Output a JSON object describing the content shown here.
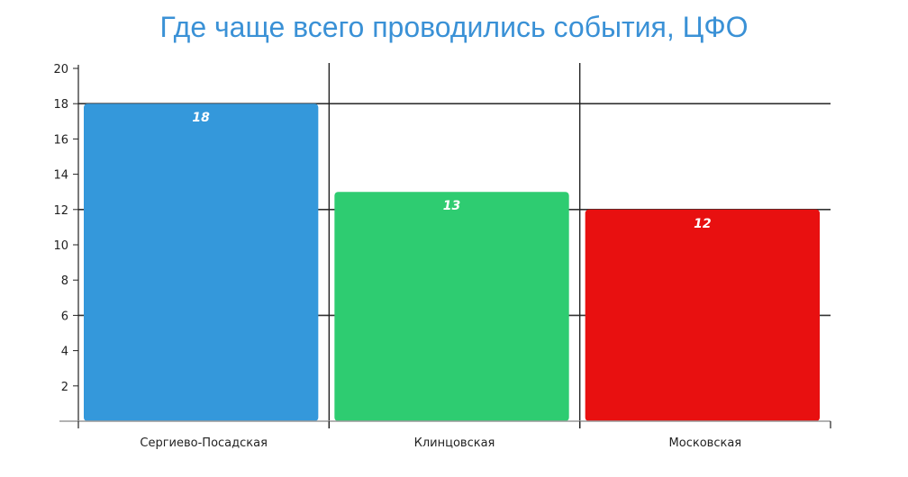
{
  "chart_data": {
    "type": "bar",
    "title": "Где чаще всего проводились события, ЦФО",
    "categories": [
      "Сергиево-Посадская",
      "Клинцовская",
      "Московская"
    ],
    "values": [
      18,
      13,
      12
    ],
    "colors": [
      "#3498db",
      "#2ecc71",
      "#e81010"
    ],
    "title_color": "#3a91d6",
    "ylim": [
      0,
      20
    ],
    "yticks": [
      2,
      4,
      6,
      8,
      10,
      12,
      14,
      16,
      18,
      20
    ],
    "grid": true,
    "data_labels": true
  }
}
